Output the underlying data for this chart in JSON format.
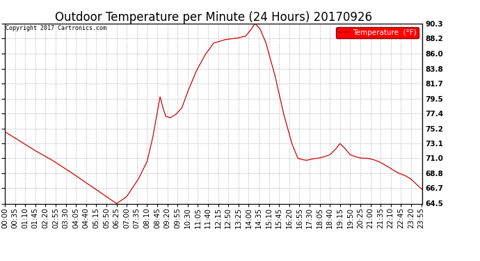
{
  "title": "Outdoor Temperature per Minute (24 Hours) 20170926",
  "copyright_text": "Copyright 2017 Cartronics.com",
  "legend_label": "Temperature  (°F)",
  "ylim": [
    64.5,
    90.3
  ],
  "yticks": [
    64.5,
    66.7,
    68.8,
    71.0,
    73.1,
    75.2,
    77.4,
    79.5,
    81.7,
    83.8,
    86.0,
    88.2,
    90.3
  ],
  "line_color": "#cc0000",
  "background_color": "#ffffff",
  "grid_color": "#b0b0b0",
  "title_fontsize": 12,
  "tick_fontsize": 7.5,
  "total_minutes": 1440,
  "x_tick_interval": 35,
  "x_tick_labels": [
    "00:00",
    "00:35",
    "01:10",
    "01:45",
    "02:20",
    "02:55",
    "03:30",
    "04:05",
    "04:40",
    "05:15",
    "05:50",
    "06:25",
    "07:00",
    "07:35",
    "08:10",
    "08:45",
    "09:20",
    "09:55",
    "10:30",
    "11:05",
    "11:40",
    "12:15",
    "12:50",
    "13:25",
    "14:00",
    "14:35",
    "15:10",
    "15:45",
    "16:20",
    "16:55",
    "17:30",
    "18:05",
    "18:40",
    "19:15",
    "19:50",
    "20:25",
    "21:00",
    "21:35",
    "22:10",
    "22:45",
    "23:20",
    "23:55"
  ],
  "keypoints": [
    [
      0,
      74.8
    ],
    [
      50,
      73.5
    ],
    [
      100,
      72.2
    ],
    [
      160,
      70.8
    ],
    [
      220,
      69.2
    ],
    [
      280,
      67.5
    ],
    [
      340,
      65.8
    ],
    [
      385,
      64.5
    ],
    [
      420,
      65.5
    ],
    [
      460,
      68.0
    ],
    [
      490,
      70.5
    ],
    [
      510,
      74.0
    ],
    [
      525,
      77.5
    ],
    [
      535,
      79.8
    ],
    [
      545,
      78.2
    ],
    [
      555,
      77.0
    ],
    [
      570,
      76.8
    ],
    [
      590,
      77.3
    ],
    [
      610,
      78.2
    ],
    [
      630,
      80.5
    ],
    [
      660,
      83.5
    ],
    [
      690,
      85.8
    ],
    [
      720,
      87.5
    ],
    [
      760,
      88.0
    ],
    [
      800,
      88.2
    ],
    [
      830,
      88.5
    ],
    [
      850,
      89.5
    ],
    [
      862,
      90.3
    ],
    [
      880,
      89.5
    ],
    [
      900,
      87.5
    ],
    [
      930,
      83.0
    ],
    [
      960,
      77.5
    ],
    [
      990,
      73.0
    ],
    [
      1010,
      71.0
    ],
    [
      1025,
      70.8
    ],
    [
      1040,
      70.7
    ],
    [
      1060,
      70.9
    ],
    [
      1080,
      71.0
    ],
    [
      1100,
      71.2
    ],
    [
      1120,
      71.5
    ],
    [
      1140,
      72.3
    ],
    [
      1155,
      73.1
    ],
    [
      1170,
      72.5
    ],
    [
      1190,
      71.5
    ],
    [
      1210,
      71.2
    ],
    [
      1230,
      71.0
    ],
    [
      1250,
      71.0
    ],
    [
      1270,
      70.8
    ],
    [
      1290,
      70.5
    ],
    [
      1320,
      69.8
    ],
    [
      1350,
      69.0
    ],
    [
      1380,
      68.5
    ],
    [
      1400,
      68.0
    ],
    [
      1420,
      67.2
    ],
    [
      1439,
      66.5
    ]
  ]
}
